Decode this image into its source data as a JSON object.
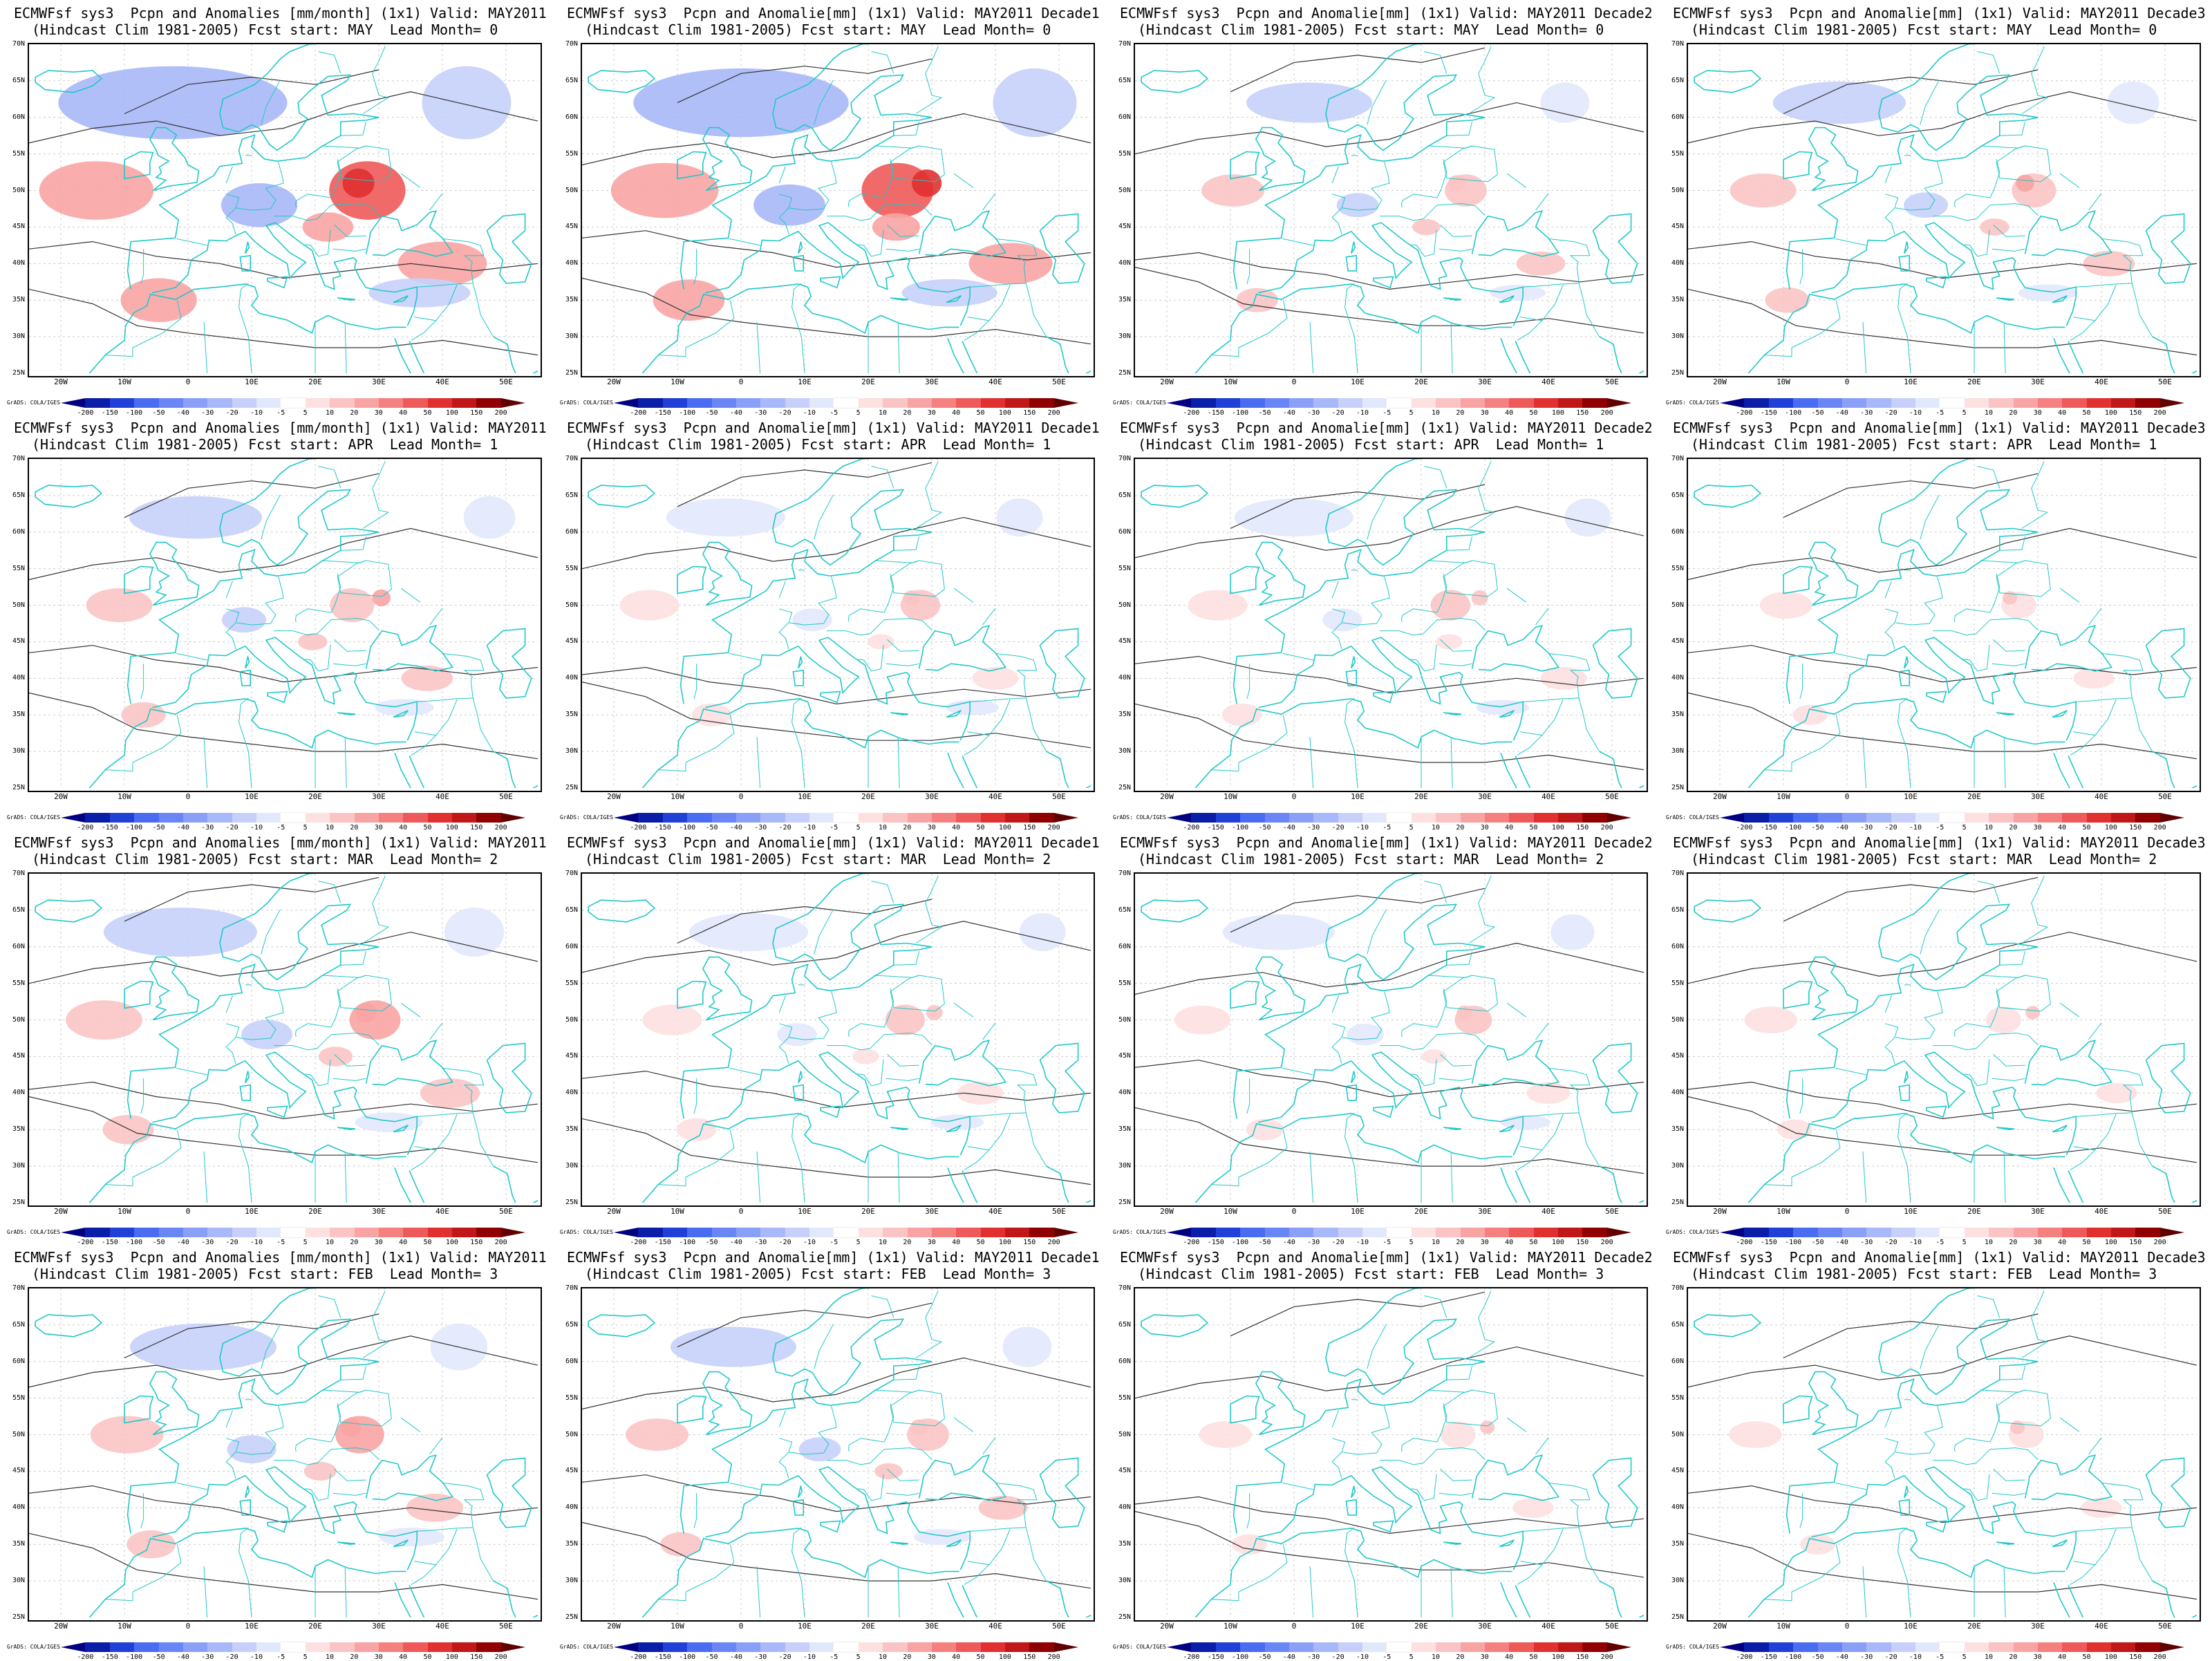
{
  "panels": [
    {
      "row": 0,
      "col": 0,
      "line1": "ECMWFsf sys3  Pcpn and Anomalies [mm/month] (1x1) Valid: MAY2011",
      "line2": "(Hindcast Clim 1981-2005) Fcst start: MAY  Lead Month= 0",
      "intensity": 1.0
    },
    {
      "row": 0,
      "col": 1,
      "line1": "ECMWFsf sys3  Pcpn and Anomalie[mm] (1x1) Valid: MAY2011 Decade1",
      "line2": "(Hindcast Clim 1981-2005) Fcst start: MAY  Lead Month= 0",
      "intensity": 0.9
    },
    {
      "row": 0,
      "col": 2,
      "line1": "ECMWFsf sys3  Pcpn and Anomalie[mm] (1x1) Valid: MAY2011 Decade2",
      "line2": "(Hindcast Clim 1981-2005) Fcst start: MAY  Lead Month= 0",
      "intensity": 0.25
    },
    {
      "row": 0,
      "col": 3,
      "line1": "ECMWFsf sys3  Pcpn and Anomalie[mm] (1x1) Valid: MAY2011 Decade3",
      "line2": "(Hindcast Clim 1981-2005) Fcst start: MAY  Lead Month= 0",
      "intensity": 0.3
    },
    {
      "row": 1,
      "col": 0,
      "line1": "ECMWFsf sys3  Pcpn and Anomalies [mm/month] (1x1) Valid: MAY2011",
      "line2": "(Hindcast Clim 1981-2005) Fcst start: APR  Lead Month= 1",
      "intensity": 0.3
    },
    {
      "row": 1,
      "col": 1,
      "line1": "ECMWFsf sys3  Pcpn and Anomalie[mm] (1x1) Valid: MAY2011 Decade1",
      "line2": "(Hindcast Clim 1981-2005) Fcst start: APR  Lead Month= 1",
      "intensity": 0.2
    },
    {
      "row": 1,
      "col": 2,
      "line1": "ECMWFsf sys3  Pcpn and Anomalie[mm] (1x1) Valid: MAY2011 Decade2",
      "line2": "(Hindcast Clim 1981-2005) Fcst start: APR  Lead Month= 1",
      "intensity": 0.2
    },
    {
      "row": 1,
      "col": 3,
      "line1": "ECMWFsf sys3  Pcpn and Anomalie[mm] (1x1) Valid: MAY2011 Decade3",
      "line2": "(Hindcast Clim 1981-2005) Fcst start: APR  Lead Month= 1",
      "intensity": 0.1
    },
    {
      "row": 2,
      "col": 0,
      "line1": "ECMWFsf sys3  Pcpn and Anomalies [mm/month] (1x1) Valid: MAY2011",
      "line2": "(Hindcast Clim 1981-2005) Fcst start: MAR  Lead Month= 2",
      "intensity": 0.45
    },
    {
      "row": 2,
      "col": 1,
      "line1": "ECMWFsf sys3  Pcpn and Anomalie[mm] (1x1) Valid: MAY2011 Decade1",
      "line2": "(Hindcast Clim 1981-2005) Fcst start: MAR  Lead Month= 2",
      "intensity": 0.2
    },
    {
      "row": 2,
      "col": 2,
      "line1": "ECMWFsf sys3  Pcpn and Anomalie[mm] (1x1) Valid: MAY2011 Decade2",
      "line2": "(Hindcast Clim 1981-2005) Fcst start: MAR  Lead Month= 2",
      "intensity": 0.15
    },
    {
      "row": 2,
      "col": 3,
      "line1": "ECMWFsf sys3  Pcpn and Anomalie[mm] (1x1) Valid: MAY2011 Decade3",
      "line2": "(Hindcast Clim 1981-2005) Fcst start: MAR  Lead Month= 2",
      "intensity": 0.1
    },
    {
      "row": 3,
      "col": 0,
      "line1": "ECMWFsf sys3  Pcpn and Anomalies [mm/month] (1x1) Valid: MAY2011",
      "line2": "(Hindcast Clim 1981-2005) Fcst start: FEB  Lead Month= 3",
      "intensity": 0.4
    },
    {
      "row": 3,
      "col": 1,
      "line1": "ECMWFsf sys3  Pcpn and Anomalie[mm] (1x1) Valid: MAY2011 Decade1",
      "line2": "(Hindcast Clim 1981-2005) Fcst start: FEB  Lead Month= 3",
      "intensity": 0.25
    },
    {
      "row": 3,
      "col": 2,
      "line1": "ECMWFsf sys3  Pcpn and Anomalie[mm] (1x1) Valid: MAY2011 Decade2",
      "line2": "(Hindcast Clim 1981-2005) Fcst start: FEB  Lead Month= 3",
      "intensity": 0.1
    },
    {
      "row": 3,
      "col": 3,
      "line1": "ECMWFsf sys3  Pcpn and Anomalie[mm] (1x1) Valid: MAY2011 Decade3",
      "line2": "(Hindcast Clim 1981-2005) Fcst start: FEB  Lead Month= 3",
      "intensity": 0.1
    }
  ],
  "lat_labels": [
    "70N",
    "65N",
    "60N",
    "55N",
    "50N",
    "45N",
    "40N",
    "35N",
    "30N",
    "25N"
  ],
  "lon_labels": [
    "20W",
    "10W",
    "0",
    "10E",
    "20E",
    "30E",
    "40E",
    "50E"
  ],
  "colorbar": {
    "labels": [
      "-200",
      "-150",
      "-100",
      "-50",
      "-40",
      "-30",
      "-20",
      "-10",
      "-5",
      "5",
      "10",
      "20",
      "30",
      "40",
      "50",
      "100",
      "150",
      "200"
    ],
    "colors": [
      "#000080",
      "#0b1ea8",
      "#2040d8",
      "#4a6cf0",
      "#6a86f4",
      "#8aa0f6",
      "#a8b8f8",
      "#c6d0fa",
      "#e2e8fc",
      "#ffffff",
      "#fde0e0",
      "#fbc4c4",
      "#f8a4a4",
      "#f48080",
      "#ee5a5a",
      "#e03030",
      "#c01818",
      "#900000",
      "#600000"
    ]
  },
  "credit": "GrADS: COLA/IGES",
  "colors": {
    "coast": "#20c8c8",
    "contour": "#333333",
    "anom_pos": "#f07070",
    "anom_neg": "#7080f0"
  }
}
